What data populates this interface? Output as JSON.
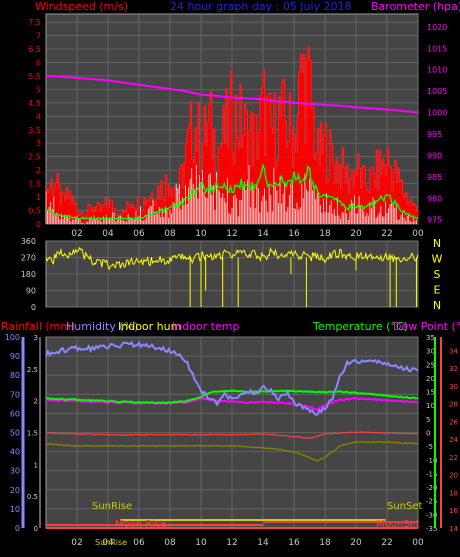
{
  "title": "24 hour graph day : 05 July 2018",
  "colors": {
    "background": "#000000",
    "plot_bg": "#454545",
    "grid": "#6a6a6a",
    "frame": "#9a9a9a",
    "text": "#c8c8c8",
    "title": "#2222dd",
    "wind_label": "#ff0000",
    "baro_label": "#ff00ff",
    "wind_bar": "#ff0000",
    "gust_line": "#ff2020",
    "avg_wind": "#00ff00",
    "wind_speed": "#ffffff",
    "baro_line": "#ff00ff",
    "direction": "#ffff00",
    "rain_label": "#ff0000",
    "humidity_label": "#8888ff",
    "indoor_hum_label": "#ffff00",
    "indoor_temp_label": "#ff00ff",
    "temp_label": "#00ff00",
    "dew_label": "#ff00ff",
    "humidity_line": "#8888ff",
    "temp_line": "#00ff00",
    "dew_line": "#ff00ff",
    "indoor_temp_line": "#ff4040",
    "indoor_hum_line": "#808000",
    "rain_axis": "#8888ff",
    "right_red_axis": "#ff4040",
    "sun": "#cccc00",
    "moon": "#ff4040",
    "sunshine": "#cccc00"
  },
  "x_ticks": [
    "02",
    "04",
    "06",
    "08",
    "10",
    "12",
    "14",
    "16",
    "18",
    "20",
    "22",
    "00"
  ],
  "chart_data": [
    {
      "type": "bar",
      "panel": "wind",
      "title": "24 hour graph day : 05 July 2018",
      "xlabel": "",
      "ylabel": "Windspeed (m/s)",
      "y2label": "Barometer (hpa)",
      "x_range_hours": [
        0,
        24
      ],
      "ylim": [
        0,
        7.8
      ],
      "y_ticks": [
        "0",
        "0.5",
        "1",
        "1.5",
        "2",
        "2.5",
        "3",
        "3.5",
        "4",
        "4.5",
        "5",
        "5.5",
        "6",
        "6.5",
        "7",
        "7.5"
      ],
      "y2lim": [
        974,
        1023
      ],
      "y2_ticks": [
        "975",
        "980",
        "985",
        "990",
        "995",
        "1000",
        "1005",
        "1010",
        "1015",
        "1020"
      ],
      "grid": true,
      "series": [
        {
          "name": "",
          "kind": "gust_bars",
          "x": [
            0,
            0.5,
            1,
            1.5,
            2,
            2.5,
            3,
            3.5,
            4,
            4.5,
            5,
            5.5,
            6,
            6.5,
            7,
            7.5,
            8,
            8.5,
            9,
            9.5,
            10,
            10.5,
            11,
            11.5,
            12,
            12.5,
            13,
            13.5,
            14,
            14.5,
            15,
            15.5,
            16,
            16.5,
            17,
            17.5,
            18,
            18.5,
            19,
            19.5,
            20,
            20.5,
            21,
            21.5,
            22,
            22.5,
            23,
            23.5,
            24
          ],
          "values": [
            1.5,
            2.0,
            1.0,
            1.3,
            0.6,
            0.5,
            0.8,
            0.6,
            1.0,
            0.6,
            0.5,
            1.1,
            0.9,
            1.2,
            1.5,
            1.7,
            2.0,
            1.5,
            3.0,
            4.6,
            3.5,
            4.5,
            3.3,
            4.0,
            5.0,
            4.5,
            4.0,
            3.8,
            5.2,
            4.0,
            4.8,
            4.5,
            4.0,
            6.8,
            5.8,
            3.0,
            3.5,
            2.8,
            2.5,
            2.0,
            2.5,
            1.8,
            2.0,
            2.5,
            2.8,
            2.2,
            1.5,
            1.0,
            0.5
          ]
        },
        {
          "name": "",
          "kind": "avg_line",
          "x": [
            0,
            0.5,
            1,
            1.5,
            2,
            2.5,
            3,
            3.5,
            4,
            4.5,
            5,
            5.5,
            6,
            6.5,
            7,
            7.5,
            8,
            8.5,
            9,
            9.5,
            10,
            10.5,
            11,
            11.5,
            12,
            12.5,
            13,
            13.5,
            14,
            14.5,
            15,
            15.5,
            16,
            16.5,
            17,
            17.5,
            18,
            18.5,
            19,
            19.5,
            20,
            20.5,
            21,
            21.5,
            22,
            22.5,
            23,
            23.5,
            24
          ],
          "values": [
            0.6,
            0.4,
            0.3,
            0.3,
            0.2,
            0.2,
            0.2,
            0.2,
            0.2,
            0.2,
            0.2,
            0.2,
            0.2,
            0.3,
            0.4,
            0.5,
            0.6,
            0.7,
            0.9,
            1.2,
            1.4,
            1.3,
            1.4,
            1.4,
            1.2,
            1.5,
            1.3,
            1.5,
            2.0,
            1.4,
            1.5,
            1.6,
            1.7,
            1.8,
            1.9,
            1.2,
            1.0,
            0.9,
            0.8,
            0.6,
            0.7,
            0.6,
            0.7,
            0.9,
            1.0,
            0.8,
            0.5,
            0.3,
            0.2
          ]
        },
        {
          "name": "",
          "kind": "speed_spikes",
          "x": [
            0,
            0.5,
            1,
            1.5,
            2,
            2.5,
            3,
            3.5,
            4,
            4.5,
            5,
            5.5,
            6,
            6.5,
            7,
            7.5,
            8,
            8.5,
            9,
            9.5,
            10,
            10.5,
            11,
            11.5,
            12,
            12.5,
            13,
            13.5,
            14,
            14.5,
            15,
            15.5,
            16,
            16.5,
            17,
            17.5,
            18,
            18.5,
            19,
            19.5,
            20,
            20.5,
            21,
            21.5,
            22,
            22.5,
            23,
            23.5,
            24
          ],
          "values": [
            1.0,
            0.8,
            0.5,
            0.4,
            0.3,
            0.0,
            0.3,
            0.2,
            0.5,
            0.3,
            0.2,
            0.4,
            0.5,
            0.6,
            0.8,
            0.9,
            1.0,
            1.2,
            1.3,
            1.8,
            1.6,
            1.5,
            1.9,
            1.2,
            1.6,
            1.3,
            1.9,
            1.5,
            1.2,
            1.9,
            1.6,
            1.4,
            1.3,
            1.4,
            1.5,
            1.0,
            1.2,
            0.8,
            0.9,
            0.6,
            1.0,
            0.5,
            0.7,
            1.2,
            1.1,
            0.7,
            0.5,
            0.3,
            0.1
          ]
        },
        {
          "name": "",
          "kind": "baro_line",
          "axis": "y2",
          "x": [
            0,
            1,
            2,
            3,
            4,
            5,
            6,
            7,
            8,
            9,
            10,
            11,
            12,
            13,
            14,
            15,
            16,
            17,
            18,
            19,
            20,
            21,
            22,
            23,
            24
          ],
          "values": [
            1008.6,
            1008.4,
            1008.1,
            1007.8,
            1007.5,
            1007.0,
            1006.5,
            1006.0,
            1005.5,
            1005.0,
            1004.2,
            1003.9,
            1003.5,
            1003.3,
            1003.1,
            1002.6,
            1002.3,
            1002.0,
            1001.8,
            1001.6,
            1001.2,
            1001.0,
            1000.7,
            1000.4,
            1000.0
          ]
        }
      ]
    },
    {
      "type": "line",
      "panel": "direction",
      "xlabel": "",
      "ylabel": "",
      "ylim": [
        0,
        360
      ],
      "y_ticks": [
        "0",
        "90",
        "180",
        "270",
        "360"
      ],
      "compass": [
        "N",
        "W",
        "S",
        "E",
        "N"
      ],
      "grid": true,
      "series": [
        {
          "name": "",
          "x": [
            0,
            0.5,
            1,
            1.5,
            2,
            2.5,
            3,
            3.5,
            4,
            4.5,
            5,
            5.5,
            6,
            6.5,
            7,
            7.5,
            8,
            8.5,
            9,
            9.5,
            10,
            10.5,
            11,
            11.5,
            12,
            12.5,
            13,
            13.5,
            14,
            14.5,
            15,
            15.5,
            16,
            16.5,
            17,
            17.5,
            18,
            18.5,
            19,
            19.5,
            20,
            20.5,
            21,
            21.5,
            22,
            22.5,
            23,
            23.5,
            24
          ],
          "values": [
            270,
            260,
            300,
            290,
            320,
            280,
            250,
            240,
            230,
            220,
            235,
            240,
            250,
            245,
            255,
            260,
            250,
            265,
            275,
            260,
            280,
            270,
            275,
            290,
            285,
            300,
            280,
            290,
            270,
            300,
            285,
            275,
            290,
            280,
            270,
            285,
            260,
            280,
            300,
            275,
            270,
            290,
            280,
            270,
            285,
            260,
            270,
            275,
            265
          ],
          "drops": [
            {
              "x": 9.3,
              "v": 0
            },
            {
              "x": 10.0,
              "v": 0
            },
            {
              "x": 10.3,
              "v": 90
            },
            {
              "x": 11.4,
              "v": 0
            },
            {
              "x": 12.4,
              "v": 0
            },
            {
              "x": 15.8,
              "v": 180
            },
            {
              "x": 16.8,
              "v": 0
            },
            {
              "x": 20.0,
              "v": 200
            },
            {
              "x": 22.2,
              "v": 0
            },
            {
              "x": 22.6,
              "v": 0
            },
            {
              "x": 23.9,
              "v": 0
            }
          ]
        }
      ]
    },
    {
      "type": "line",
      "panel": "thermo",
      "xlabel": "",
      "legend_left": [
        "Rainfall (mm)",
        "Humidity (%)",
        "Indoor hum",
        "Indoor temp"
      ],
      "legend_right": [
        "Temperature (°C)",
        "Dew Point (°C)"
      ],
      "rain_ticks": [
        "0",
        "0.5",
        "1",
        "1.5",
        "2",
        "2.5",
        "3"
      ],
      "hum_ticks": [
        "0",
        "10",
        "20",
        "30",
        "40",
        "50",
        "60",
        "70",
        "80",
        "90",
        "100"
      ],
      "temp_ticks": [
        "-35",
        "-30",
        "-25",
        "-20",
        "-15",
        "-10",
        "-5",
        "0",
        "5",
        "10",
        "15",
        "20",
        "25",
        "30",
        "35"
      ],
      "indoor_ticks": [
        "14",
        "16",
        "18",
        "20",
        "22",
        "24",
        "26",
        "28",
        "30",
        "32",
        "34"
      ],
      "hum_ylim": [
        0,
        100
      ],
      "temp_ylim": [
        -35,
        35
      ],
      "grid": true,
      "series": [
        {
          "name": "Humidity (%)",
          "axis": "hum",
          "x": [
            0,
            1,
            2,
            3,
            4,
            5,
            6,
            7,
            8,
            9,
            9.5,
            10,
            10.5,
            11,
            11.5,
            12,
            12.5,
            13,
            13.5,
            14,
            14.5,
            15,
            15.5,
            16,
            16.5,
            17,
            17.5,
            18,
            18.5,
            19,
            19.5,
            20,
            21,
            22,
            23,
            23.5,
            24
          ],
          "values": [
            91,
            93,
            94,
            94,
            95,
            96,
            96,
            95,
            93,
            88,
            80,
            72,
            68,
            65,
            70,
            67,
            69,
            72,
            70,
            74,
            72,
            68,
            71,
            66,
            64,
            62,
            60,
            63,
            68,
            80,
            87,
            87,
            87,
            86,
            84,
            83,
            83
          ]
        },
        {
          "name": "Indoor hum",
          "axis": "hum",
          "x": [
            0,
            2,
            4,
            6,
            8,
            10,
            12,
            14,
            16,
            17,
            17.5,
            18,
            19,
            20,
            22,
            24
          ],
          "values": [
            44,
            43,
            43,
            43,
            43,
            43,
            43,
            42,
            40,
            37,
            35,
            37,
            43,
            45,
            45,
            44
          ]
        },
        {
          "name": "Temperature (°C)",
          "axis": "temp",
          "x": [
            0,
            2,
            4,
            6,
            8,
            9,
            10,
            10.5,
            11,
            12,
            13,
            14,
            15,
            16,
            17,
            18,
            19,
            20,
            21,
            22,
            23,
            24
          ],
          "values": [
            12.5,
            12.0,
            11.5,
            11.0,
            11.0,
            11.5,
            13.0,
            14.5,
            15.0,
            15.2,
            15.0,
            15.0,
            15.3,
            15.2,
            15.0,
            14.8,
            15.0,
            14.5,
            14.0,
            13.5,
            13.0,
            12.5
          ]
        },
        {
          "name": "Dew Point (°C)",
          "axis": "temp",
          "x": [
            0,
            2,
            4,
            6,
            8,
            9,
            10,
            10.5,
            11,
            12,
            13,
            14,
            15,
            16,
            17,
            17.5,
            18,
            19,
            20,
            21,
            22,
            23,
            24
          ],
          "values": [
            12.0,
            11.5,
            11.0,
            10.8,
            10.8,
            11.0,
            12.5,
            12.0,
            11.5,
            11.3,
            11.0,
            11.2,
            11.0,
            10.5,
            9.5,
            8.5,
            10.0,
            12.0,
            12.5,
            12.0,
            11.8,
            11.5,
            11.0
          ]
        },
        {
          "name": "Indoor temp",
          "axis": "indoor",
          "x": [
            0,
            2,
            4,
            6,
            8,
            10,
            12,
            14,
            16,
            17,
            18,
            19,
            20,
            22,
            24
          ],
          "values": [
            24.7,
            24.6,
            24.5,
            24.5,
            24.5,
            24.5,
            24.5,
            24.6,
            24.3,
            24.1,
            24.6,
            24.7,
            24.8,
            24.7,
            24.6
          ]
        },
        {
          "name": "Rainfall (mm)",
          "axis": "rain",
          "x": [
            0,
            24
          ],
          "values": [
            0,
            0
          ]
        }
      ],
      "annotations": {
        "sunrise_label": "SunRise",
        "sunset_label": "SunSet",
        "moonrise_label": "Moon Rise",
        "moonset_label": "MoonSet",
        "sunrise_hour": 4.8,
        "sunset_hour": 21.9,
        "moonrise_hour": 1.0,
        "moonset_hour": 14.0
      }
    }
  ]
}
